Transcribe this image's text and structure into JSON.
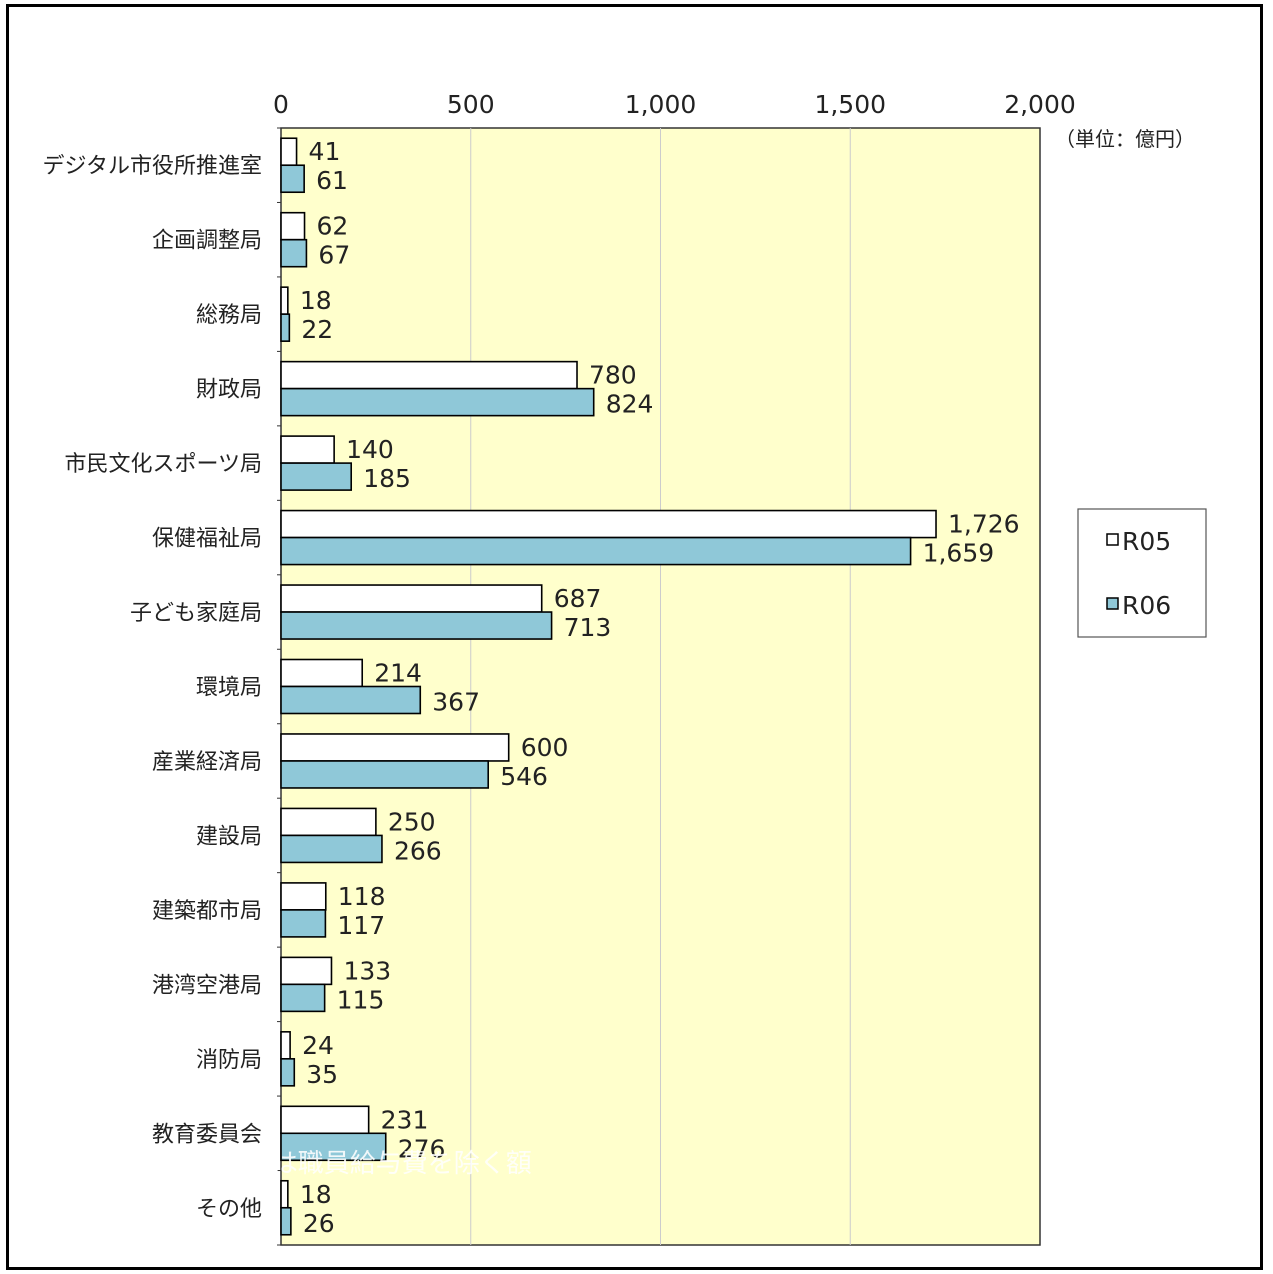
{
  "chart_data": {
    "type": "bar",
    "orientation": "horizontal",
    "unit_label": "（単位：億円）",
    "xlim": [
      0,
      2000
    ],
    "x_ticks": [
      "0",
      "500",
      "1,000",
      "1,500",
      "2,000"
    ],
    "x_tick_values": [
      0,
      500,
      1000,
      1500,
      2000
    ],
    "categories": [
      "デジタル市役所推進室",
      "企画調整局",
      "総務局",
      "財政局",
      "市民文化スポーツ局",
      "保健福祉局",
      "子ども家庭局",
      "環境局",
      "産業経済局",
      "建設局",
      "建築都市局",
      "港湾空港局",
      "消防局",
      "教育委員会",
      "その他"
    ],
    "series": [
      {
        "name": "R05",
        "color": "#ffffff",
        "values": [
          41,
          62,
          18,
          780,
          140,
          1726,
          687,
          214,
          600,
          250,
          118,
          133,
          24,
          231,
          18
        ],
        "labels": [
          "41",
          "62",
          "18",
          "780",
          "140",
          "1,726",
          "687",
          "214",
          "600",
          "250",
          "118",
          "133",
          "24",
          "231",
          "18"
        ]
      },
      {
        "name": "R06",
        "color": "#8fc8d8",
        "values": [
          61,
          67,
          22,
          824,
          185,
          1659,
          713,
          367,
          546,
          266,
          117,
          115,
          35,
          276,
          26
        ],
        "labels": [
          "61",
          "67",
          "22",
          "824",
          "185",
          "1,659",
          "713",
          "367",
          "546",
          "266",
          "117",
          "115",
          "35",
          "276",
          "26"
        ]
      }
    ],
    "plot_background": "#ffffcc",
    "legend": {
      "position": "right",
      "labels": [
        "R05",
        "R06"
      ]
    },
    "note": "※各局の予算要求額は職員給与費を除く額"
  }
}
